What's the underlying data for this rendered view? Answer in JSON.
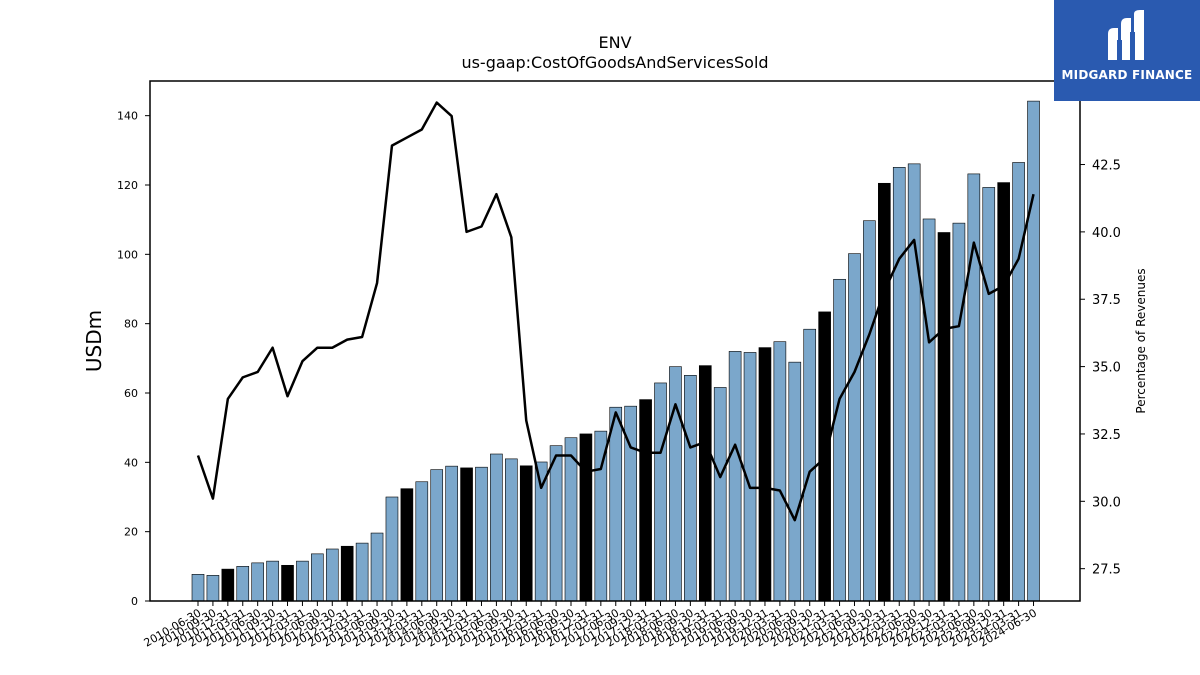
{
  "logo": {
    "text": "MIDGARD FINANCE",
    "icon": "midgard-logo-icon",
    "background": "#2a5ab0"
  },
  "chart_data": {
    "type": "bar",
    "title": "ENV",
    "subtitle": "us-gaap:CostOfGoodsAndServicesSold",
    "ylabel": "USDm",
    "y2label": "Percentage of Revenues",
    "ylim": [
      0,
      150
    ],
    "y2lim": [
      26.3,
      45.6
    ],
    "yticks": [
      0,
      20,
      40,
      60,
      80,
      100,
      120,
      140
    ],
    "y2ticks": [
      27.5,
      30.0,
      32.5,
      35.0,
      37.5,
      40.0,
      42.5
    ],
    "categories": [
      "2010-06-30",
      "2010-09-30",
      "2010-12-31",
      "2011-03-31",
      "2011-06-30",
      "2011-09-30",
      "2011-12-31",
      "2012-03-31",
      "2012-06-30",
      "2012-09-30",
      "2012-12-31",
      "2013-03-31",
      "2013-06-30",
      "2013-09-30",
      "2013-12-31",
      "2014-03-31",
      "2014-06-30",
      "2014-09-30",
      "2014-12-31",
      "2015-03-31",
      "2015-06-30",
      "2015-09-30",
      "2015-12-31",
      "2016-03-31",
      "2016-06-30",
      "2016-09-30",
      "2016-12-31",
      "2017-03-31",
      "2017-06-30",
      "2017-09-30",
      "2017-12-31",
      "2018-03-31",
      "2018-06-30",
      "2018-09-30",
      "2018-12-31",
      "2019-03-31",
      "2019-06-30",
      "2019-09-30",
      "2019-12-31",
      "2020-03-31",
      "2020-06-30",
      "2020-09-30",
      "2020-12-31",
      "2021-03-31",
      "2021-06-30",
      "2021-09-30",
      "2021-12-31",
      "2022-03-31",
      "2022-06-30",
      "2022-09-30",
      "2022-12-31",
      "2023-03-31",
      "2023-06-30",
      "2023-09-30",
      "2023-12-31",
      "2024-03-31",
      "2024-06-30"
    ],
    "series": [
      {
        "name": "",
        "kind": "bar",
        "axis": "left",
        "values": [
          7.7,
          7.4,
          9.2,
          10.0,
          11.0,
          11.5,
          10.3,
          11.5,
          13.6,
          15.0,
          15.8,
          16.7,
          19.6,
          30.0,
          32.4,
          34.4,
          37.9,
          38.9,
          38.4,
          38.6,
          42.4,
          41.0,
          39.0,
          40.1,
          44.8,
          47.1,
          48.2,
          49.0,
          55.9,
          56.2,
          58.1,
          62.9,
          67.6,
          65.1,
          67.9,
          61.6,
          72.0,
          71.7,
          73.1,
          74.8,
          68.9,
          78.4,
          83.4,
          92.8,
          100.2,
          109.7,
          120.5,
          125.1,
          126.1,
          110.2,
          106.3,
          109.0,
          123.2,
          119.3,
          120.7,
          126.5,
          144.2
        ],
        "colors": [
          "#7ba7cb",
          "#7ba7cb",
          "#000000",
          "#7ba7cb",
          "#7ba7cb",
          "#7ba7cb",
          "#000000",
          "#7ba7cb",
          "#7ba7cb",
          "#7ba7cb",
          "#000000",
          "#7ba7cb",
          "#7ba7cb",
          "#7ba7cb",
          "#000000",
          "#7ba7cb",
          "#7ba7cb",
          "#7ba7cb",
          "#000000",
          "#7ba7cb",
          "#7ba7cb",
          "#7ba7cb",
          "#000000",
          "#7ba7cb",
          "#7ba7cb",
          "#7ba7cb",
          "#000000",
          "#7ba7cb",
          "#7ba7cb",
          "#7ba7cb",
          "#000000",
          "#7ba7cb",
          "#7ba7cb",
          "#7ba7cb",
          "#000000",
          "#7ba7cb",
          "#7ba7cb",
          "#7ba7cb",
          "#000000",
          "#7ba7cb",
          "#7ba7cb",
          "#7ba7cb",
          "#000000",
          "#7ba7cb",
          "#7ba7cb",
          "#7ba7cb",
          "#000000",
          "#7ba7cb",
          "#7ba7cb",
          "#7ba7cb",
          "#000000",
          "#7ba7cb",
          "#7ba7cb",
          "#7ba7cb",
          "#000000",
          "#7ba7cb",
          "#7ba7cb"
        ]
      },
      {
        "name": "",
        "kind": "line",
        "axis": "right",
        "color": "#000000",
        "values": [
          31.7,
          30.1,
          33.8,
          34.6,
          34.8,
          35.7,
          33.9,
          35.2,
          35.7,
          35.7,
          36.0,
          36.1,
          38.1,
          43.2,
          43.5,
          43.8,
          44.8,
          44.3,
          40.0,
          40.2,
          41.4,
          39.8,
          33.0,
          30.5,
          31.7,
          31.7,
          31.1,
          31.2,
          33.3,
          32.0,
          31.8,
          31.8,
          33.6,
          32.0,
          32.2,
          30.9,
          32.1,
          30.5,
          30.5,
          30.4,
          29.3,
          31.1,
          31.6,
          33.8,
          34.8,
          36.2,
          37.8,
          39.0,
          39.7,
          35.9,
          36.4,
          36.5,
          39.6,
          37.7,
          38.0,
          39.0,
          41.4
        ]
      }
    ],
    "grid": false,
    "legend": "none"
  }
}
